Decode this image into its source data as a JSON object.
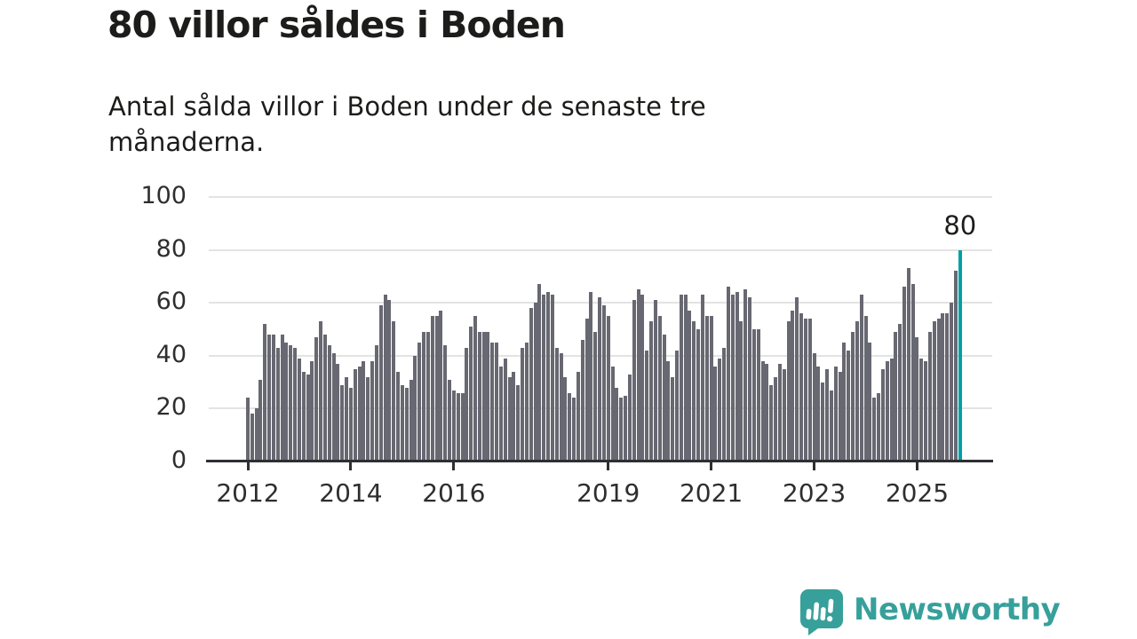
{
  "header": {
    "title": "80 villor såldes i Boden",
    "subtitle": "Antal sålda villor i Boden under de senaste tre månaderna."
  },
  "chart_data": {
    "type": "bar",
    "title": "80 villor såldes i Boden",
    "subtitle": "Antal sålda villor i Boden under de senaste tre månaderna.",
    "unit": "antal sålda villor (rullande 3 månader)",
    "x_start": "2012",
    "x_end": "2025",
    "values": [
      24,
      18,
      20,
      31,
      52,
      48,
      48,
      43,
      48,
      45,
      44,
      43,
      39,
      34,
      33,
      38,
      47,
      53,
      48,
      44,
      41,
      37,
      29,
      32,
      28,
      35,
      36,
      38,
      32,
      38,
      44,
      59,
      63,
      61,
      53,
      34,
      29,
      28,
      31,
      40,
      45,
      49,
      49,
      55,
      55,
      57,
      44,
      31,
      27,
      26,
      26,
      43,
      51,
      55,
      49,
      49,
      49,
      45,
      45,
      36,
      39,
      32,
      34,
      29,
      43,
      45,
      58,
      60,
      67,
      63,
      64,
      63,
      43,
      41,
      32,
      26,
      24,
      34,
      46,
      54,
      64,
      49,
      62,
      59,
      55,
      36,
      28,
      24,
      25,
      33,
      61,
      65,
      63,
      42,
      53,
      61,
      55,
      48,
      38,
      32,
      42,
      63,
      63,
      57,
      53,
      50,
      63,
      55,
      55,
      36,
      39,
      43,
      66,
      63,
      64,
      53,
      65,
      62,
      50,
      50,
      38,
      37,
      29,
      32,
      37,
      35,
      53,
      57,
      62,
      56,
      54,
      54,
      41,
      36,
      30,
      35,
      27,
      36,
      34,
      45,
      42,
      49,
      53,
      63,
      55,
      45,
      24,
      26,
      35,
      38,
      39,
      49,
      52,
      66,
      73,
      67,
      47,
      39,
      38,
      49,
      53,
      54,
      56,
      56,
      60,
      72,
      80
    ],
    "highlight_index_from_end": 1,
    "highlight_value": 80,
    "annotation_label": "80",
    "ylim": [
      0,
      100
    ],
    "yticks": [
      0,
      20,
      40,
      60,
      80,
      100
    ],
    "xticks": [
      {
        "label": "2012",
        "month_index": 0
      },
      {
        "label": "2014",
        "month_index": 24
      },
      {
        "label": "2016",
        "month_index": 48
      },
      {
        "label": "2019",
        "month_index": 84
      },
      {
        "label": "2021",
        "month_index": 108
      },
      {
        "label": "2023",
        "month_index": 132
      },
      {
        "label": "2025",
        "month_index": 156
      }
    ],
    "grid": true,
    "legend": false,
    "colors": {
      "bar": "#686872",
      "highlight": "#00a1a6",
      "grid": "#e3e3e3",
      "axis": "#2e2e35",
      "tick_text": "#2e2e2e",
      "text": "#1c1c1b"
    }
  },
  "branding": {
    "logo_text": "Newsworthy",
    "logo_color": "#37a09b",
    "logo_icon": "speech-bubble-bar-chart-icon"
  }
}
